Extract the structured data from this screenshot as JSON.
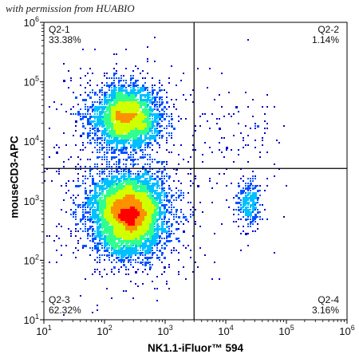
{
  "watermark": "with permission from HUABIO",
  "chart_data": {
    "type": "scatter",
    "subtype": "flow-cytometry-density-dotplot",
    "xlabel": "NK1.1-iFluor™ 594",
    "ylabel": "mouseCD3-APC",
    "x_scale": "log",
    "y_scale": "log",
    "xlim": [
      10,
      1000000
    ],
    "ylim": [
      10,
      1000000
    ],
    "x_ticks": [
      {
        "base": "10",
        "exp": "1"
      },
      {
        "base": "10",
        "exp": "2"
      },
      {
        "base": "10",
        "exp": "3"
      },
      {
        "base": "10",
        "exp": "4"
      },
      {
        "base": "10",
        "exp": "5"
      },
      {
        "base": "10",
        "exp": "6"
      }
    ],
    "y_ticks": [
      {
        "base": "10",
        "exp": "1"
      },
      {
        "base": "10",
        "exp": "2"
      },
      {
        "base": "10",
        "exp": "3"
      },
      {
        "base": "10",
        "exp": "4"
      },
      {
        "base": "10",
        "exp": "5"
      },
      {
        "base": "10",
        "exp": "6"
      }
    ],
    "gate": {
      "x": 3000,
      "y": 3500
    },
    "quadrants": [
      {
        "id": "Q2-1",
        "percent": "33.38%",
        "position": "top-left"
      },
      {
        "id": "Q2-2",
        "percent": "1.14%",
        "position": "top-right"
      },
      {
        "id": "Q2-3",
        "percent": "62.32%",
        "position": "bottom-left"
      },
      {
        "id": "Q2-4",
        "percent": "3.16%",
        "position": "bottom-right"
      }
    ],
    "populations": [
      {
        "center_x": 230,
        "center_y": 25000,
        "spread_x_decades": 0.28,
        "spread_y_decades": 0.26,
        "share": 0.33
      },
      {
        "center_x": 250,
        "center_y": 600,
        "spread_x_decades": 0.3,
        "spread_y_decades": 0.33,
        "share": 0.62
      },
      {
        "center_x": 25000,
        "center_y": 900,
        "spread_x_decades": 0.1,
        "spread_y_decades": 0.2,
        "share": 0.03
      },
      {
        "center_x": 20000,
        "center_y": 15000,
        "spread_x_decades": 0.35,
        "spread_y_decades": 0.35,
        "share": 0.01
      }
    ],
    "colormap": [
      "#0000c8",
      "#0050ff",
      "#00c0ff",
      "#30ff90",
      "#d0ff00",
      "#ff9000",
      "#ff0000"
    ],
    "grid": false,
    "legend": "none"
  }
}
